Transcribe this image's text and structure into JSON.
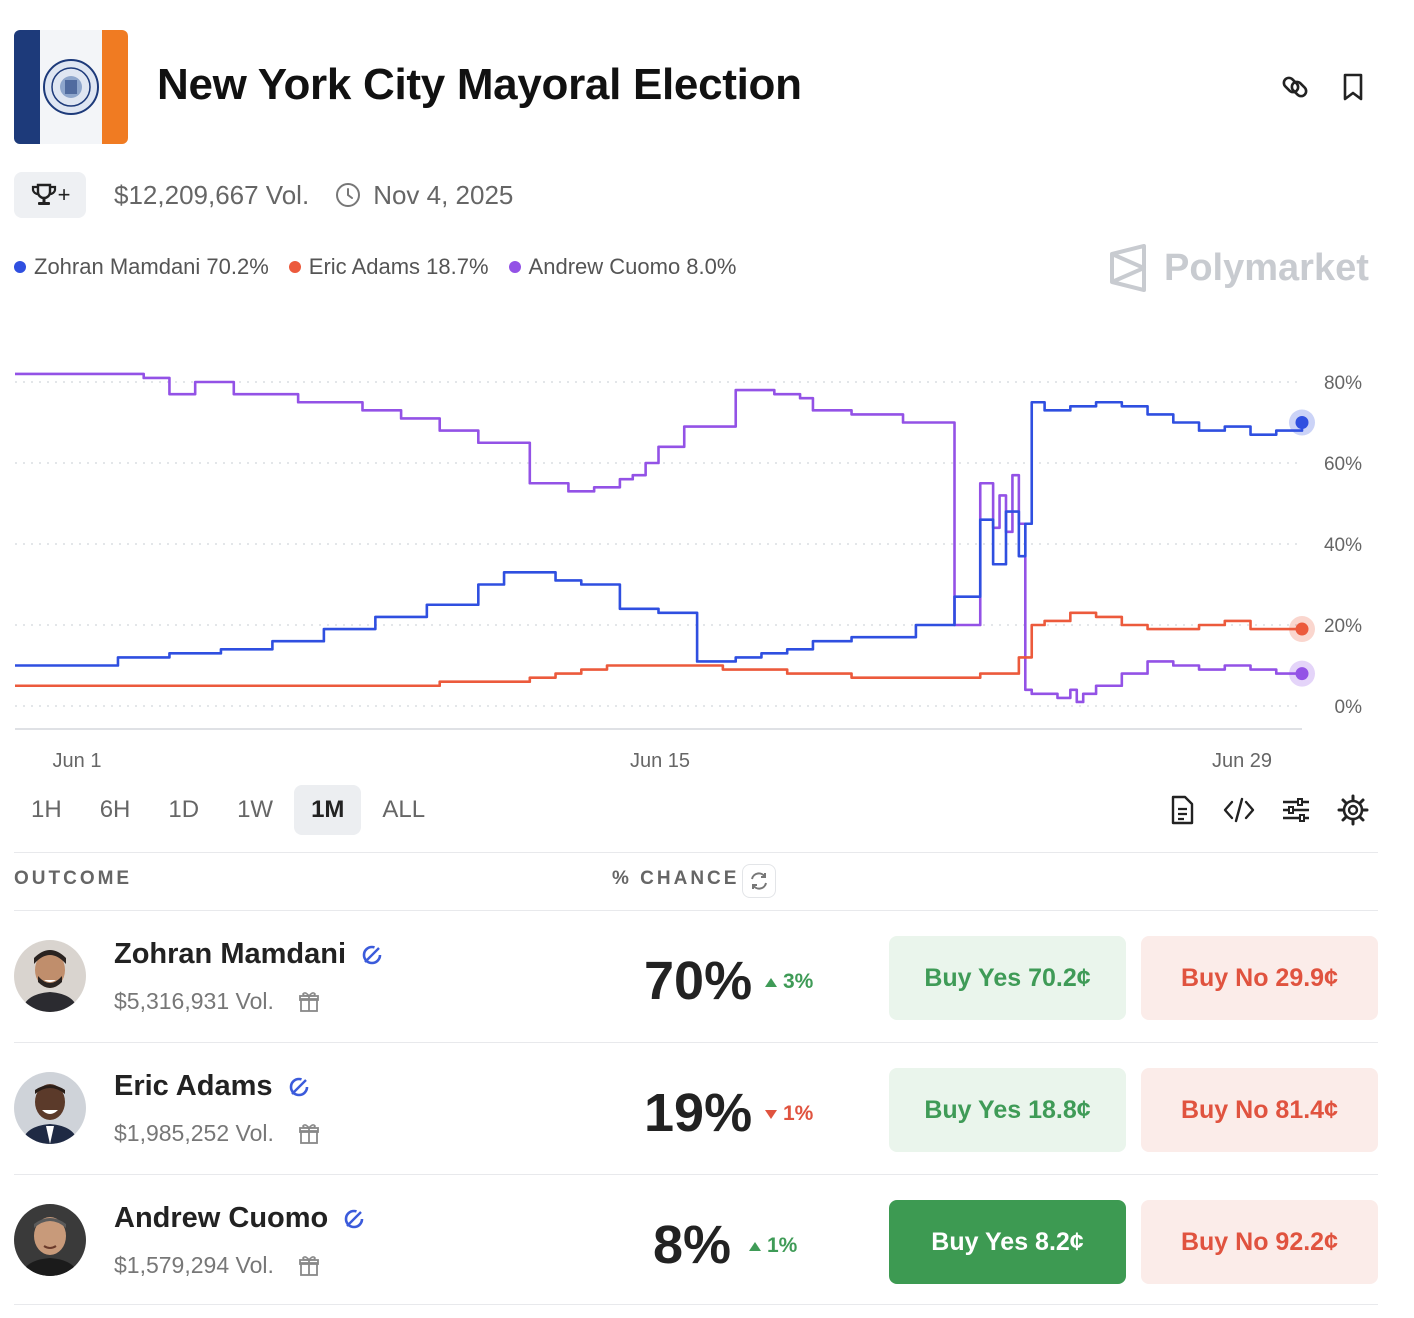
{
  "header": {
    "title": "New York City Mayoral Election"
  },
  "meta": {
    "volume": "$12,209,667 Vol.",
    "end_date": "Nov 4, 2025",
    "trophy_plus": "+"
  },
  "legend": [
    {
      "label": "Zohran Mamdani 70.2%",
      "color": "#2f4fe0"
    },
    {
      "label": "Eric Adams 18.7%",
      "color": "#ec5a3c"
    },
    {
      "label": "Andrew Cuomo 8.0%",
      "color": "#9352e6"
    }
  ],
  "brand": "Polymarket",
  "chart_data": {
    "type": "line",
    "x_labels": [
      "Jun 1",
      "Jun 15",
      "Jun 29"
    ],
    "y_ticks": [
      "0%",
      "20%",
      "40%",
      "60%",
      "80%"
    ],
    "ylim": [
      0,
      80
    ],
    "grid": true,
    "series": [
      {
        "name": "Andrew Cuomo",
        "color": "#9352e6",
        "x": [
          0,
          5,
          10,
          12,
          14,
          17,
          22,
          27,
          30,
          33,
          36,
          40,
          43,
          45,
          47,
          48,
          49,
          50,
          52,
          56,
          59,
          60,
          61,
          62,
          65,
          69,
          73,
          75,
          76,
          76.5,
          77,
          77.5,
          78,
          78.5,
          79,
          80,
          81,
          82,
          82.5,
          83,
          84,
          86,
          88,
          90,
          92,
          94,
          96,
          98,
          100
        ],
        "y": [
          82,
          82,
          81,
          77,
          80,
          77,
          75,
          73,
          71,
          68,
          65,
          55,
          53,
          54,
          56,
          57,
          60,
          64,
          69,
          78,
          77,
          77,
          76,
          73,
          72,
          70,
          20,
          55,
          44,
          52,
          43,
          57,
          45,
          4,
          3,
          3,
          2,
          4,
          1,
          3,
          5,
          8,
          11,
          10,
          9,
          10,
          9,
          8,
          8
        ]
      },
      {
        "name": "Zohran Mamdani",
        "color": "#2f4fe0",
        "x": [
          0,
          4,
          8,
          12,
          16,
          20,
          24,
          28,
          32,
          36,
          38,
          40,
          42,
          44,
          47,
          50,
          53,
          55,
          56,
          58,
          60,
          62,
          65,
          70,
          73,
          75,
          76,
          77,
          78,
          78.5,
          79,
          80,
          82,
          84,
          86,
          88,
          90,
          92,
          94,
          96,
          98,
          100
        ],
        "y": [
          10,
          10,
          12,
          13,
          14,
          16,
          19,
          22,
          25,
          30,
          33,
          33,
          31,
          30,
          24,
          23,
          11,
          11,
          12,
          13,
          14,
          16,
          17,
          20,
          27,
          46,
          35,
          48,
          37,
          45,
          75,
          73,
          74,
          75,
          74,
          72,
          70,
          68,
          69,
          67,
          68,
          70
        ]
      },
      {
        "name": "Eric Adams",
        "color": "#ec5a3c",
        "x": [
          0,
          10,
          20,
          30,
          33,
          36,
          40,
          42,
          44,
          46,
          50,
          55,
          60,
          65,
          70,
          75,
          78,
          79,
          80,
          82,
          84,
          86,
          88,
          90,
          92,
          94,
          96,
          98,
          100
        ],
        "y": [
          5,
          5,
          5,
          5,
          6,
          6,
          7,
          8,
          9,
          10,
          10,
          9,
          8,
          7,
          7,
          8,
          12,
          20,
          21,
          23,
          22,
          20,
          19,
          19,
          20,
          21,
          19,
          19,
          19
        ]
      }
    ]
  },
  "ranges": [
    {
      "label": "1H",
      "active": false
    },
    {
      "label": "6H",
      "active": false
    },
    {
      "label": "1D",
      "active": false
    },
    {
      "label": "1W",
      "active": false
    },
    {
      "label": "1M",
      "active": true
    },
    {
      "label": "ALL",
      "active": false
    }
  ],
  "table": {
    "col_outcome": "OUTCOME",
    "col_chance": "% CHANCE"
  },
  "outcomes": [
    {
      "name": "Zohran Mamdani",
      "volume": "$5,316,931 Vol.",
      "chance": "70%",
      "change": "3%",
      "change_dir": "up",
      "buy_yes": "Buy Yes 70.2¢",
      "buy_no": "Buy No 29.9¢"
    },
    {
      "name": "Eric Adams",
      "volume": "$1,985,252 Vol.",
      "chance": "19%",
      "change": "1%",
      "change_dir": "down",
      "buy_yes": "Buy Yes 18.8¢",
      "buy_no": "Buy No 81.4¢"
    },
    {
      "name": "Andrew Cuomo",
      "volume": "$1,579,294 Vol.",
      "chance": "8%",
      "change": "1%",
      "change_dir": "up",
      "buy_yes": "Buy Yes 8.2¢",
      "buy_no": "Buy No 92.2¢"
    }
  ]
}
